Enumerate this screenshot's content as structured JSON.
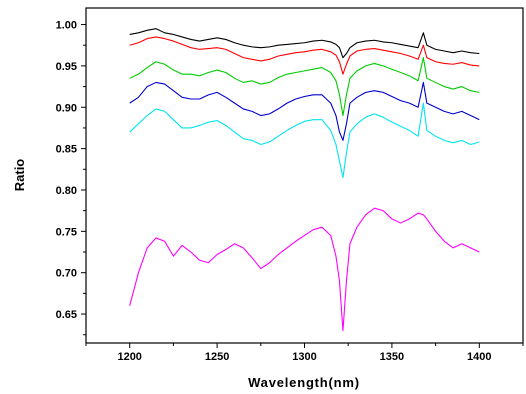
{
  "chart_data": {
    "type": "line",
    "title": "",
    "xlabel": "Wavelength(nm)",
    "ylabel": "Ratio",
    "xlim": [
      1175,
      1425
    ],
    "ylim": [
      0.615,
      1.02
    ],
    "grid": false,
    "legend": "none",
    "x_ticks": [
      "1200",
      "1250",
      "1300",
      "1350",
      "1400"
    ],
    "y_ticks": [
      "0.65",
      "0.70",
      "0.75",
      "0.80",
      "0.85",
      "0.90",
      "0.95",
      "1.00"
    ],
    "x_tick_values": [
      1200,
      1250,
      1300,
      1350,
      1400
    ],
    "y_tick_values": [
      0.65,
      0.7,
      0.75,
      0.8,
      0.85,
      0.9,
      0.95,
      1.0
    ],
    "x": [
      1200,
      1205,
      1210,
      1215,
      1220,
      1225,
      1230,
      1235,
      1240,
      1245,
      1250,
      1255,
      1260,
      1265,
      1270,
      1275,
      1280,
      1285,
      1290,
      1295,
      1300,
      1305,
      1310,
      1315,
      1318,
      1320,
      1322,
      1324,
      1326,
      1330,
      1335,
      1340,
      1345,
      1350,
      1355,
      1360,
      1365,
      1368,
      1370,
      1375,
      1380,
      1385,
      1390,
      1395,
      1400
    ],
    "series": [
      {
        "color": "#000000",
        "values": [
          0.988,
          0.99,
          0.993,
          0.995,
          0.99,
          0.988,
          0.985,
          0.982,
          0.98,
          0.982,
          0.984,
          0.982,
          0.978,
          0.975,
          0.973,
          0.972,
          0.973,
          0.975,
          0.976,
          0.977,
          0.978,
          0.98,
          0.981,
          0.979,
          0.976,
          0.972,
          0.96,
          0.965,
          0.972,
          0.978,
          0.98,
          0.981,
          0.979,
          0.978,
          0.976,
          0.974,
          0.972,
          0.99,
          0.975,
          0.97,
          0.968,
          0.966,
          0.968,
          0.966,
          0.965
        ]
      },
      {
        "color": "#ff0000",
        "values": [
          0.975,
          0.978,
          0.983,
          0.985,
          0.983,
          0.98,
          0.976,
          0.972,
          0.97,
          0.971,
          0.972,
          0.97,
          0.965,
          0.96,
          0.958,
          0.956,
          0.958,
          0.962,
          0.964,
          0.966,
          0.967,
          0.969,
          0.97,
          0.967,
          0.963,
          0.955,
          0.94,
          0.952,
          0.962,
          0.968,
          0.97,
          0.971,
          0.969,
          0.967,
          0.965,
          0.962,
          0.958,
          0.975,
          0.96,
          0.955,
          0.953,
          0.952,
          0.954,
          0.951,
          0.95
        ]
      },
      {
        "color": "#00cc00",
        "values": [
          0.935,
          0.94,
          0.948,
          0.955,
          0.952,
          0.945,
          0.94,
          0.94,
          0.938,
          0.942,
          0.945,
          0.942,
          0.935,
          0.93,
          0.932,
          0.928,
          0.93,
          0.936,
          0.94,
          0.942,
          0.944,
          0.946,
          0.948,
          0.942,
          0.932,
          0.915,
          0.89,
          0.915,
          0.935,
          0.944,
          0.95,
          0.953,
          0.95,
          0.946,
          0.942,
          0.938,
          0.932,
          0.96,
          0.935,
          0.93,
          0.925,
          0.922,
          0.925,
          0.92,
          0.918
        ]
      },
      {
        "color": "#0000cc",
        "values": [
          0.905,
          0.912,
          0.925,
          0.93,
          0.928,
          0.92,
          0.912,
          0.91,
          0.91,
          0.915,
          0.918,
          0.912,
          0.905,
          0.898,
          0.895,
          0.89,
          0.892,
          0.898,
          0.905,
          0.91,
          0.913,
          0.915,
          0.915,
          0.905,
          0.89,
          0.87,
          0.86,
          0.88,
          0.905,
          0.912,
          0.918,
          0.92,
          0.918,
          0.913,
          0.908,
          0.905,
          0.9,
          0.93,
          0.905,
          0.9,
          0.895,
          0.892,
          0.895,
          0.89,
          0.885
        ]
      },
      {
        "color": "#00e5ee",
        "values": [
          0.87,
          0.88,
          0.89,
          0.898,
          0.895,
          0.885,
          0.875,
          0.875,
          0.878,
          0.882,
          0.884,
          0.878,
          0.87,
          0.862,
          0.86,
          0.855,
          0.858,
          0.865,
          0.872,
          0.878,
          0.883,
          0.885,
          0.885,
          0.872,
          0.855,
          0.835,
          0.815,
          0.845,
          0.87,
          0.88,
          0.888,
          0.892,
          0.888,
          0.882,
          0.877,
          0.872,
          0.865,
          0.905,
          0.872,
          0.865,
          0.86,
          0.857,
          0.86,
          0.855,
          0.858
        ]
      },
      {
        "color": "#ff00ff",
        "values": [
          0.66,
          0.7,
          0.73,
          0.742,
          0.738,
          0.72,
          0.733,
          0.725,
          0.715,
          0.712,
          0.722,
          0.728,
          0.735,
          0.73,
          0.718,
          0.705,
          0.712,
          0.722,
          0.73,
          0.738,
          0.745,
          0.752,
          0.755,
          0.745,
          0.72,
          0.69,
          0.63,
          0.69,
          0.735,
          0.755,
          0.77,
          0.778,
          0.775,
          0.765,
          0.76,
          0.765,
          0.772,
          0.77,
          0.765,
          0.75,
          0.738,
          0.73,
          0.735,
          0.73,
          0.725
        ]
      }
    ]
  }
}
